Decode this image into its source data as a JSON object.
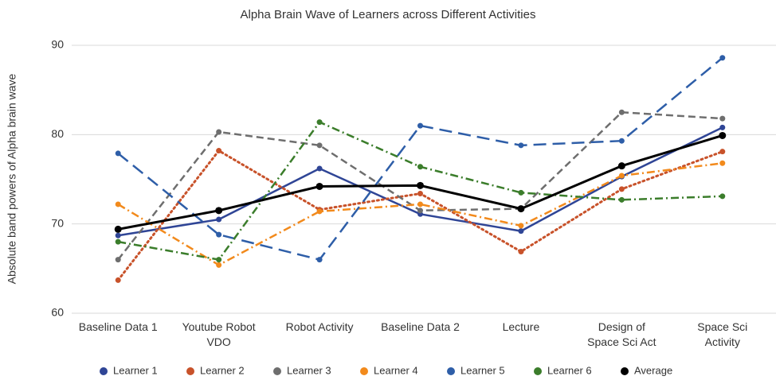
{
  "chart_data": {
    "type": "line",
    "title": "Alpha Brain Wave  of Learners across Different Activities",
    "y_label": "Absolute band powers of Alpha brain wave",
    "categories": [
      "Baseline Data 1",
      "Youtube Robot\nVDO",
      "Robot Activity",
      "Baseline Data 2",
      "Lecture",
      "Design of\nSpace Sci Act",
      "Space Sci\nActivity"
    ],
    "ylim": [
      60,
      90
    ],
    "yticks": [
      60,
      70,
      80,
      90
    ],
    "grid": true,
    "legend": "bottom",
    "series": [
      {
        "name": "Learner 1",
        "color": "#2f4596",
        "dash": "solid",
        "values": [
          68.7,
          70.5,
          76.2,
          71.1,
          69.2,
          75.3,
          80.8
        ]
      },
      {
        "name": "Learner 2",
        "color": "#c8522a",
        "dash": "dotted",
        "values": [
          63.7,
          78.2,
          71.6,
          73.4,
          66.9,
          73.9,
          78.1
        ]
      },
      {
        "name": "Learner 3",
        "color": "#6e6e6e",
        "dash": "dashed",
        "values": [
          66.0,
          80.3,
          78.8,
          71.5,
          71.7,
          82.5,
          81.8
        ]
      },
      {
        "name": "Learner 4",
        "color": "#f28a1c",
        "dash": "dashdot",
        "values": [
          72.2,
          65.4,
          71.4,
          72.2,
          69.8,
          75.4,
          76.8
        ]
      },
      {
        "name": "Learner 5",
        "color": "#2e5ea8",
        "dash": "longdash",
        "values": [
          77.9,
          68.8,
          66.0,
          81.0,
          78.8,
          79.3,
          88.6
        ]
      },
      {
        "name": "Learner 6",
        "color": "#3b7d2b",
        "dash": "dashdot",
        "values": [
          68.0,
          66.0,
          81.4,
          76.4,
          73.5,
          72.7,
          73.1
        ]
      },
      {
        "name": "Average",
        "color": "#000000",
        "dash": "solid",
        "values": [
          69.4,
          71.5,
          74.2,
          74.3,
          71.7,
          76.5,
          79.9
        ]
      }
    ]
  }
}
